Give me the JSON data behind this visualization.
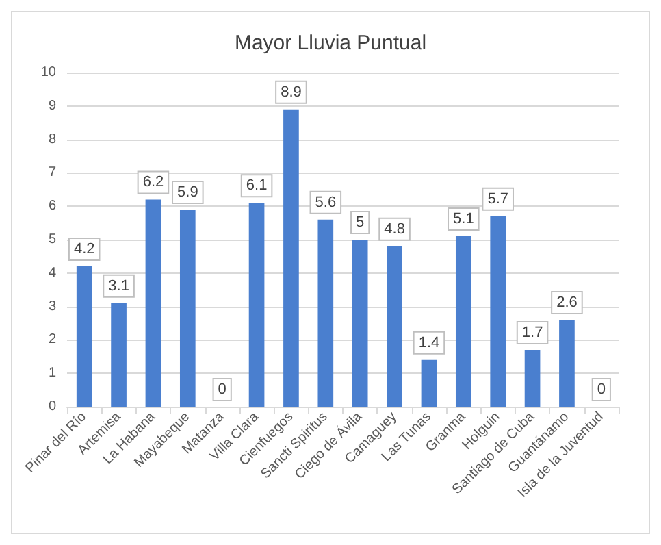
{
  "chart_data": {
    "type": "bar",
    "title": "Mayor Lluvia Puntual",
    "categories": [
      "Pinar del Río",
      "Artemisa",
      "La Habana",
      "Mayabeque",
      "Matanza",
      "Villa Clara",
      "Cienfuegos",
      "Sancti Spiritus",
      "Ciego de Ávila",
      "Camaguey",
      "Las Tunas",
      "Granma",
      "Holguin",
      "Santiago de Cuba",
      "Guantánamo",
      "Isla de la Juventud"
    ],
    "values": [
      4.2,
      3.1,
      6.2,
      5.9,
      0,
      6.1,
      8.9,
      5.6,
      5,
      4.8,
      1.4,
      5.1,
      5.7,
      1.7,
      2.6,
      0
    ],
    "color": "#4a7fcf",
    "ylim": [
      0,
      10
    ],
    "yticks": [
      0,
      1,
      2,
      3,
      4,
      5,
      6,
      7,
      8,
      9,
      10
    ],
    "grid": "y",
    "data_labels": true
  }
}
